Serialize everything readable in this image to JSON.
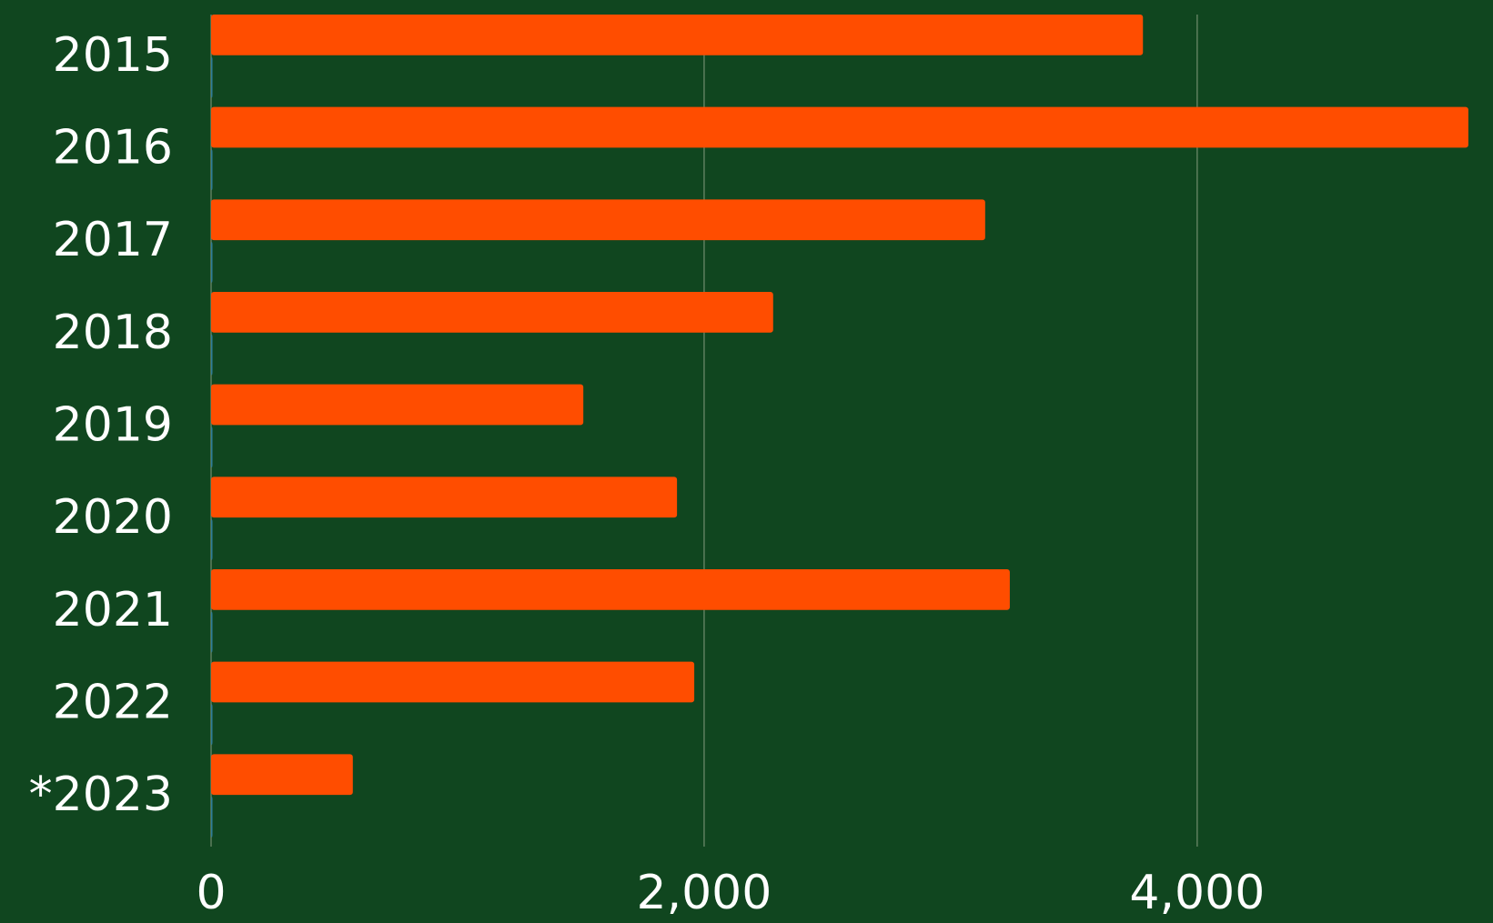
{
  "chart_data": {
    "type": "bar",
    "orientation": "horizontal",
    "categories": [
      "2015",
      "2016",
      "2017",
      "2018",
      "2019",
      "2020",
      "2021",
      "2022",
      "*2023"
    ],
    "series": [
      {
        "color": "#ff4d00",
        "values": [
          3780,
          5100,
          3140,
          2280,
          1510,
          1890,
          3240,
          1960,
          575
        ]
      },
      {
        "color": "#2e7d9a",
        "values": [
          5,
          5,
          5,
          5,
          5,
          0,
          0,
          0,
          0
        ]
      }
    ],
    "xlim": [
      0,
      5200
    ],
    "xticks": [
      0,
      {
        "value": 2000,
        "label": "2,000"
      },
      {
        "value": 4000,
        "label": "4,000"
      }
    ],
    "grid": true,
    "grid_color": "#5e7f5f",
    "background": "#10461f"
  }
}
